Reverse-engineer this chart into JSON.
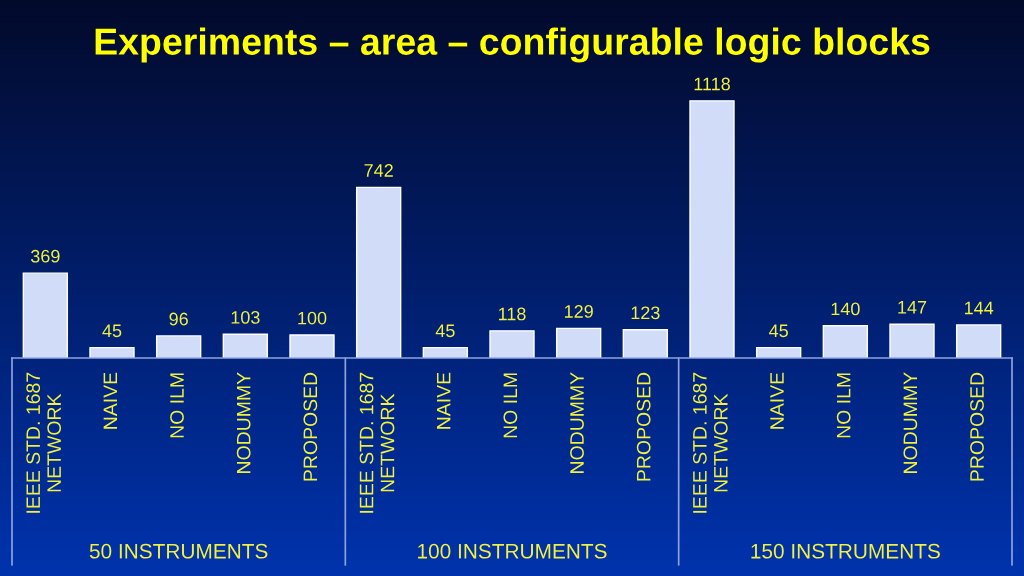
{
  "chart_data": {
    "type": "bar",
    "title": "Experiments – area – configurable logic blocks",
    "categories": [
      "IEEE STD. 1687\nNETWORK",
      "NAIVE",
      "NO ILM",
      "NODUMMY",
      "PROPOSED",
      "IEEE STD. 1687\nNETWORK",
      "NAIVE",
      "NO ILM",
      "NODUMMY",
      "PROPOSED",
      "IEEE STD. 1687\nNETWORK",
      "NAIVE",
      "NO ILM",
      "NODUMMY",
      "PROPOSED"
    ],
    "values": [
      369,
      45,
      96,
      103,
      100,
      742,
      45,
      118,
      129,
      123,
      1118,
      45,
      140,
      147,
      144
    ],
    "color": "#d0dcf8",
    "data_labels": true,
    "annotations": [
      "50 INSTRUMENTS",
      "100 INSTRUMENTS",
      "150 INSTRUMENTS"
    ]
  }
}
